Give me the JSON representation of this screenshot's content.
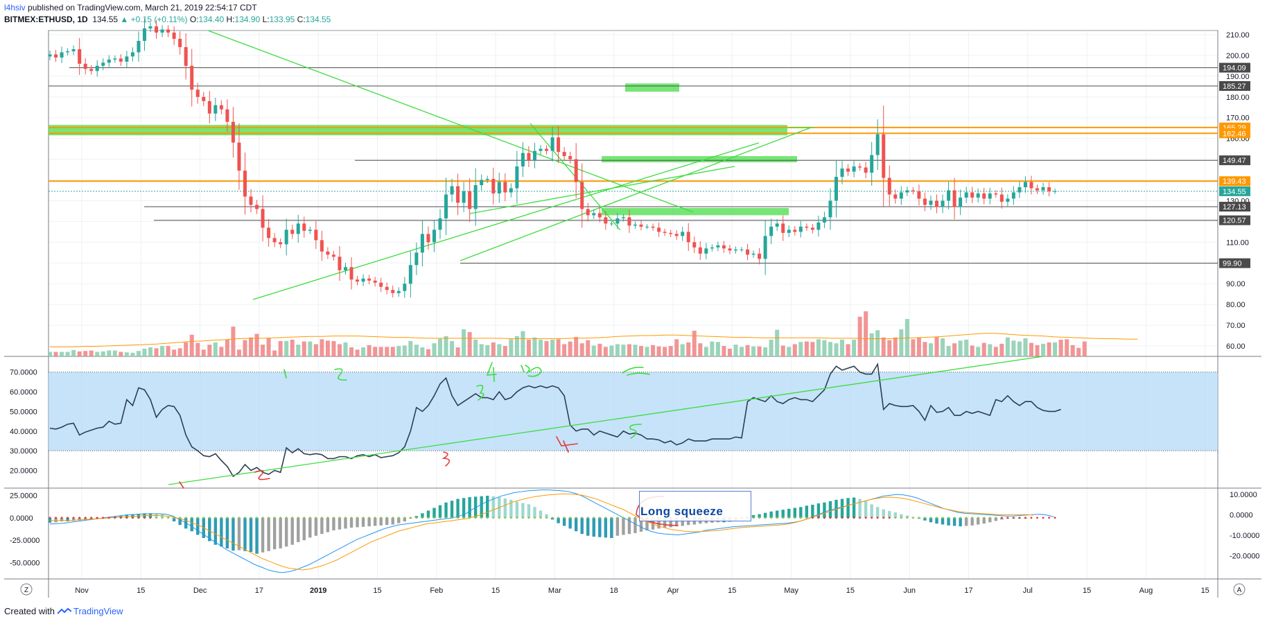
{
  "header": {
    "user": "l4hsiv",
    "published": "published on TradingView.com, March 21, 2019 22:54:17 CDT",
    "symbol": "BITMEX:ETHUSD, 1D",
    "last": "134.55",
    "change": "+0.15 (+0.11%)",
    "o_label": "O:",
    "o": "134.40",
    "h_label": "H:",
    "h": "134.90",
    "l_label": "L:",
    "l": "133.95",
    "c_label": "C:",
    "c": "134.55"
  },
  "footer": {
    "created_with": "Created with",
    "brand": "TradingView"
  },
  "annotation": {
    "squeeze_text": "Long squeeze"
  },
  "colors": {
    "up": "#26a69a",
    "down": "#ef5350",
    "green_line": "#3ddc3d",
    "orange": "#ff9800",
    "rsi_band": "#b3d9f7",
    "macd_signal": "#ff9800",
    "macd_line": "#2196f3"
  },
  "chart_data": [
    {
      "type": "candlestick",
      "name": "price",
      "ylim": [
        55,
        212
      ],
      "y_ticks": [
        "210.00",
        "200.00",
        "190.00",
        "180.00",
        "170.00",
        "160.00",
        "150.00",
        "140.00",
        "130.00",
        "120.00",
        "110.00",
        "100.00",
        "90.00",
        "80.00",
        "70.00",
        "60.00"
      ],
      "x_ticks": [
        "Nov",
        "15",
        "Dec",
        "17",
        "2019",
        "15",
        "Feb",
        "15",
        "Mar",
        "18",
        "Apr",
        "15",
        "May",
        "15",
        "Jun",
        "17",
        "Jul",
        "15",
        "Aug",
        "15"
      ],
      "horizontal_levels": [
        {
          "value": 194.09,
          "label": "194.09"
        },
        {
          "value": 185.27,
          "label": "185.27"
        },
        {
          "value": 165.29,
          "label": "165.29",
          "color": "orange"
        },
        {
          "value": 162.46,
          "label": "162.46",
          "color": "orange"
        },
        {
          "value": 149.47,
          "label": "149.47"
        },
        {
          "value": 139.43,
          "label": "139.43",
          "color": "orange"
        },
        {
          "value": 134.55,
          "label": "134.55",
          "color": "last"
        },
        {
          "value": 127.13,
          "label": "127.13"
        },
        {
          "value": 120.57,
          "label": "120.57"
        },
        {
          "value": 99.9,
          "label": "99.90"
        }
      ],
      "closes": [
        200.5,
        199,
        201.5,
        202,
        203,
        196,
        193.5,
        192.5,
        195,
        196.5,
        198,
        198.5,
        197,
        199.5,
        201.5,
        207,
        213,
        214,
        211,
        212.5,
        211,
        208,
        204,
        195,
        183.5,
        180,
        178,
        172,
        176,
        174,
        168,
        158,
        144.5,
        132,
        128,
        126,
        117,
        112,
        110,
        109,
        116,
        114,
        119,
        115.5,
        116,
        111,
        105.5,
        104,
        103,
        96.5,
        98,
        92,
        91,
        92.5,
        91.5,
        90.5,
        88.5,
        87,
        85.5,
        86.5,
        90,
        99,
        105,
        114,
        110,
        116,
        121.5,
        133,
        137,
        129,
        134.5,
        126,
        137.5,
        140,
        140.5,
        133.5,
        139,
        134,
        136,
        146.5,
        153,
        149.5,
        154,
        155,
        154,
        160.5,
        153.5,
        151.5,
        150,
        139,
        126,
        123,
        124,
        122,
        119,
        119,
        121.5,
        122,
        118,
        118.5,
        117.5,
        117.5,
        117,
        115,
        114.5,
        114,
        113,
        115,
        110,
        107.5,
        104.5,
        107,
        107.5,
        108.5,
        107,
        106,
        106.5,
        106.5,
        104,
        104.5,
        102,
        113,
        117.5,
        119,
        114.5,
        116,
        115,
        117.5,
        117,
        116,
        119.5,
        122,
        130,
        141.5,
        145.5,
        144,
        146.5,
        146,
        143.5,
        152,
        162,
        141,
        133,
        131,
        134,
        135,
        134.5,
        131,
        128,
        130,
        127,
        130,
        135,
        127,
        131.5,
        134,
        131.5,
        133.5,
        131,
        133.5,
        133,
        129.5,
        131,
        134,
        136.5,
        139,
        136,
        135,
        136.5,
        134.5,
        134.55
      ]
    },
    {
      "type": "bar",
      "name": "volume",
      "values": [
        10,
        10,
        10,
        10,
        14,
        11,
        12,
        13,
        10,
        11,
        13,
        13,
        10,
        9,
        8,
        12,
        17,
        20,
        18,
        23,
        23,
        15,
        18,
        31,
        48,
        30,
        15,
        26,
        31,
        21,
        37,
        66,
        15,
        36,
        42,
        50,
        26,
        40,
        13,
        34,
        34,
        37,
        26,
        33,
        33,
        27,
        38,
        35,
        34,
        27,
        31,
        20,
        15,
        20,
        25,
        21,
        21,
        21,
        21,
        23,
        24,
        34,
        26,
        20,
        16,
        29,
        39,
        45,
        34,
        20,
        60,
        54,
        37,
        27,
        25,
        31,
        27,
        23,
        38,
        45,
        56,
        37,
        42,
        37,
        34,
        37,
        38,
        27,
        33,
        43,
        29,
        36,
        24,
        28,
        21,
        24,
        27,
        26,
        27,
        26,
        23,
        21,
        25,
        22,
        21,
        23,
        38,
        27,
        31,
        57,
        29,
        21,
        33,
        32,
        23,
        17,
        26,
        21,
        25,
        22,
        22,
        20,
        37,
        59,
        24,
        21,
        27,
        32,
        33,
        32,
        38,
        36,
        32,
        29,
        37,
        27,
        37,
        88,
        100,
        51,
        58,
        42,
        36,
        42,
        60,
        83,
        38,
        42,
        32,
        29,
        44,
        40,
        23,
        29,
        35,
        37,
        24,
        21,
        30,
        27,
        21,
        28,
        42,
        35,
        33,
        40,
        30,
        25,
        28,
        31,
        31,
        37,
        38,
        25,
        19,
        33
      ],
      "ma_values": [
        12,
        12,
        12,
        13,
        13,
        14,
        15,
        16,
        17,
        18,
        20,
        22,
        24,
        25,
        27,
        28,
        30,
        31,
        31,
        32,
        33,
        34,
        35,
        35,
        36,
        36,
        36,
        35,
        34,
        33,
        33,
        32,
        31,
        31,
        31,
        31,
        31,
        31,
        31,
        30,
        30,
        30,
        30,
        30,
        31,
        31,
        32,
        33,
        35,
        36,
        37,
        37,
        38,
        38,
        37,
        36,
        35,
        34,
        33,
        33,
        32,
        32,
        32,
        32,
        32,
        32,
        31,
        31,
        31,
        30,
        30,
        30,
        31,
        32,
        33,
        34,
        36,
        38,
        40,
        42,
        42,
        40,
        38,
        37,
        36,
        34,
        33,
        32,
        31,
        30,
        30,
        29,
        29
      ]
    },
    {
      "type": "line",
      "name": "rsi",
      "ylim": [
        11,
        78
      ],
      "y_ticks": [
        "70.0000",
        "60.0000",
        "50.0000",
        "40.0000",
        "30.0000",
        "20.0000"
      ],
      "band": [
        30,
        70
      ],
      "values": [
        41.5,
        41,
        42,
        43.5,
        44,
        38,
        39.5,
        40.5,
        41.5,
        42,
        45,
        43.5,
        44,
        56,
        53,
        62,
        61,
        56,
        47,
        51,
        53,
        52.5,
        48,
        38,
        32,
        30,
        27.5,
        27,
        28.5,
        25,
        22,
        17,
        19,
        23,
        20,
        21.5,
        19,
        18,
        20,
        19,
        31.5,
        29,
        31,
        28.5,
        28,
        28.5,
        28,
        26,
        26,
        27,
        27,
        26,
        27.5,
        28,
        27,
        28,
        26.5,
        27,
        27.5,
        29,
        32,
        40,
        52,
        50,
        53,
        58,
        64,
        67,
        58,
        53,
        55,
        57,
        59,
        57,
        57,
        56,
        60,
        56,
        57,
        60,
        62,
        63,
        62,
        63,
        62,
        63,
        62,
        58,
        43,
        40,
        41,
        41,
        38,
        40,
        39,
        38,
        37,
        40,
        38.5,
        39,
        38,
        36,
        36,
        35.5,
        34,
        35,
        33,
        34,
        36,
        35,
        35,
        35,
        36,
        36,
        36,
        36,
        37,
        36.5,
        55,
        57,
        56,
        55,
        58,
        55,
        54,
        56,
        57,
        56,
        56,
        55,
        58,
        61,
        69,
        73,
        71,
        72,
        73,
        70,
        69,
        69,
        74,
        51,
        54,
        53,
        52.5,
        52.5,
        53,
        50,
        45.5,
        53,
        49.5,
        50,
        52,
        48,
        48,
        50,
        49,
        50,
        49,
        48,
        56,
        55,
        58,
        55,
        53,
        55,
        55,
        52,
        50.5,
        50,
        50,
        51
      ]
    },
    {
      "type": "bar",
      "name": "macd",
      "ylim": [
        -68,
        33
      ],
      "y_ticks": [
        "25.0000",
        "0.0000",
        "-25.0000",
        "-50.0000"
      ],
      "right_ticks": [
        "10.0000",
        "0.0000",
        "-10.0000",
        "-20.0000"
      ],
      "histogram": [
        -5.5,
        -5.0,
        -4.0,
        -4.0,
        -3.5,
        -3.0,
        -2.5,
        -2.0,
        -1.5,
        -1.0,
        1.0,
        1.5,
        2.0,
        3.5,
        4.0,
        4.5,
        5.0,
        5.0,
        4.5,
        4.0,
        1.0,
        -4.0,
        -8.0,
        -12.0,
        -15.0,
        -19.0,
        -22.5,
        -26.0,
        -30.0,
        -32.0,
        -34.0,
        -36.5,
        -36.0,
        -37.0,
        -38.0,
        -40.0,
        -38.5,
        -37.0,
        -35.0,
        -34.0,
        -32.0,
        -30.0,
        -27.0,
        -25.0,
        -22.0,
        -20.0,
        -18.0,
        -16.0,
        -14.0,
        -13.0,
        -12.0,
        -11.0,
        -10.5,
        -10.0,
        -9.5,
        -9.0,
        -8.5,
        -8.0,
        -7.5,
        -6.0,
        -4.0,
        -1.0,
        2.0,
        5.0,
        8.0,
        11.0,
        14.0,
        17.0,
        19.0,
        21.0,
        22.0,
        23.0,
        23.5,
        24.0,
        24.5,
        24.0,
        23.0,
        21.5,
        20.0,
        18.0,
        16.5,
        15.0,
        12.0,
        8.0,
        4.0,
        -2.0,
        -6.0,
        -9.0,
        -12.0,
        -15.0,
        -18.0,
        -20.0,
        -21.0,
        -21.5,
        -22.0,
        -22.5,
        -20.0,
        -19.0,
        -18.0,
        -17.0,
        -15.5,
        -14.0,
        -13.0,
        -12.0,
        -11.0,
        -10.5,
        -9.5,
        -9.0,
        -8.0,
        -7.5,
        -6.5,
        -6.0,
        -5.5,
        -5.0,
        -5.0,
        -4.5,
        -3.0,
        -1.5,
        1.0,
        3.0,
        4.0,
        5.5,
        7.0,
        8.0,
        9.0,
        10.0,
        11.0,
        12.0,
        13.5,
        14.5,
        16.0,
        17.0,
        18.5,
        20.0,
        21.0,
        22.0,
        22.5,
        21.0,
        18.5,
        15.0,
        12.0,
        9.5,
        7.5,
        6.0,
        4.0,
        2.5,
        1.0,
        -1.0,
        -3.0,
        -5.0,
        -6.5,
        -7.5,
        -8.5,
        -9.0,
        -9.5,
        -9.0,
        -8.5,
        -7.5,
        -6.5,
        -5.0,
        -3.5,
        -2.0,
        -1.0,
        0.0,
        0.0,
        0.0
      ],
      "macd_line": [
        -7,
        -6.5,
        -6,
        -5,
        -4,
        -3,
        -2,
        -1,
        0,
        1,
        2,
        3,
        3.5,
        4,
        4.5,
        4.5,
        4.5,
        4,
        2,
        -2,
        -6,
        -11,
        -16,
        -21,
        -26,
        -31,
        -36,
        -40,
        -44,
        -48,
        -52,
        -55,
        -58,
        -60,
        -61,
        -60,
        -58,
        -55,
        -52,
        -48,
        -44,
        -40,
        -36,
        -32,
        -28,
        -24,
        -21,
        -18,
        -15,
        -12,
        -10,
        -8,
        -7,
        -6,
        -5,
        -4,
        -3,
        -2,
        -1,
        0,
        2,
        5,
        10,
        14,
        18,
        21,
        24,
        26,
        28,
        29,
        30,
        30.5,
        31,
        31,
        30.5,
        30,
        29,
        27,
        24,
        20,
        16,
        12,
        8,
        4,
        0,
        -4,
        -8,
        -12,
        -15,
        -17,
        -18,
        -18.5,
        -19,
        -18,
        -17,
        -16,
        -14,
        -13,
        -12,
        -11,
        -10,
        -9.5,
        -9,
        -8.5,
        -8,
        -7.5,
        -7,
        -6.5,
        -6,
        -5,
        -3.5,
        -1,
        2,
        5,
        8,
        10,
        12,
        14,
        16,
        18,
        20,
        22,
        24,
        25,
        26,
        25.5,
        24,
        22,
        19,
        16,
        13,
        10,
        8,
        6,
        5,
        4.5,
        4,
        3.5,
        3,
        2.5,
        2,
        2,
        2.5,
        3,
        3.5,
        4,
        3,
        1
      ],
      "signal_line": [
        -3,
        -3,
        -3,
        -3,
        -2.5,
        -2,
        -1.5,
        -1,
        -0.5,
        0,
        0.5,
        1,
        1.5,
        2,
        2.5,
        2.5,
        2.5,
        2,
        1,
        -1,
        -3,
        -6,
        -9,
        -13,
        -17,
        -21,
        -25,
        -29,
        -33,
        -37,
        -41,
        -45,
        -48,
        -51,
        -54,
        -56,
        -57,
        -58,
        -57,
        -55,
        -53,
        -50,
        -47,
        -43,
        -39,
        -35,
        -31,
        -27,
        -24,
        -21,
        -18,
        -15,
        -13,
        -11,
        -9,
        -7,
        -6,
        -5,
        -4,
        -3,
        -2,
        -1,
        1,
        3,
        6,
        9,
        12,
        15,
        18,
        20,
        22,
        23.5,
        24.5,
        25.5,
        26,
        26.5,
        26.5,
        26,
        25,
        23,
        21,
        18,
        15,
        12,
        9,
        5,
        1,
        -3,
        -6,
        -9,
        -11,
        -13,
        -14,
        -15,
        -15.5,
        -15.5,
        -15,
        -14.5,
        -14,
        -13,
        -12,
        -11,
        -10.5,
        -10,
        -9.5,
        -9,
        -8.5,
        -8,
        -7,
        -5.5,
        -3.5,
        -1,
        1.5,
        4,
        6.5,
        9,
        11.5,
        14,
        16,
        18,
        20,
        21.5,
        22.5,
        23,
        22.5,
        21.5,
        20,
        18,
        16,
        14,
        12,
        10,
        8.5,
        7,
        6,
        5.5,
        5,
        4.5,
        4,
        3.5,
        3.5,
        3.5,
        3.5,
        3.5,
        3
      ]
    }
  ]
}
